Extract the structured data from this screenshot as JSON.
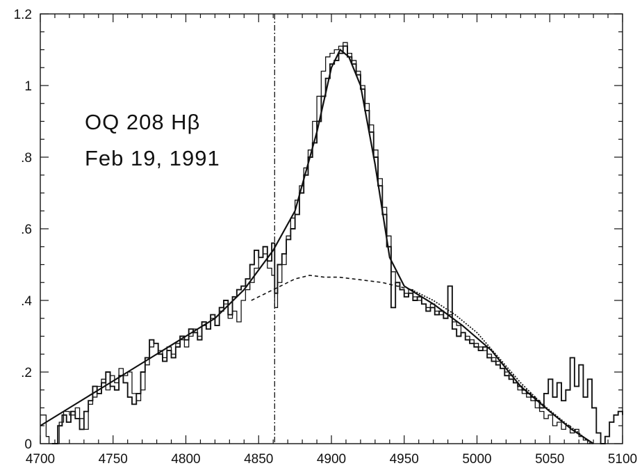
{
  "chart_data": {
    "type": "line",
    "title": "",
    "xlabel": "",
    "ylabel": "",
    "xlim": [
      4700,
      5100
    ],
    "ylim": [
      0,
      1.2
    ],
    "grid": false,
    "x_ticks": [
      4700,
      4750,
      4800,
      4850,
      4900,
      4950,
      5000,
      5050,
      5100
    ],
    "x_tick_labels": [
      "4700",
      "4750",
      "4800",
      "4850",
      "4900",
      "4950",
      "5000",
      "5050",
      "5100"
    ],
    "y_ticks": [
      0,
      0.2,
      0.4,
      0.6,
      0.8,
      1.0,
      1.2
    ],
    "y_tick_labels": [
      "0",
      ".2",
      ".4",
      ".6",
      ".8",
      "1",
      "1.2"
    ],
    "annotations": {
      "line1": "OQ 208 Hβ",
      "line2": "Feb 19, 1991"
    },
    "vertical_marker": {
      "x": 4861,
      "style": "dash-dot"
    },
    "series": [
      {
        "style": "step-thin",
        "points": [
          [
            4700,
            0.08
          ],
          [
            4704,
            0.02
          ],
          [
            4706,
            0.0
          ],
          [
            4710,
            0.0
          ],
          [
            4713,
            0.06
          ],
          [
            4716,
            0.09
          ],
          [
            4720,
            0.08
          ],
          [
            4724,
            0.1
          ],
          [
            4727,
            0.07
          ],
          [
            4730,
            0.04
          ],
          [
            4733,
            0.11
          ],
          [
            4736,
            0.13
          ],
          [
            4739,
            0.16
          ],
          [
            4742,
            0.18
          ],
          [
            4745,
            0.15
          ],
          [
            4748,
            0.19
          ],
          [
            4751,
            0.17
          ],
          [
            4754,
            0.21
          ],
          [
            4757,
            0.19
          ],
          [
            4760,
            0.2
          ],
          [
            4763,
            0.14
          ],
          [
            4766,
            0.12
          ],
          [
            4769,
            0.15
          ],
          [
            4772,
            0.22
          ],
          [
            4775,
            0.27
          ],
          [
            4778,
            0.28
          ],
          [
            4781,
            0.26
          ],
          [
            4784,
            0.24
          ],
          [
            4787,
            0.27
          ],
          [
            4790,
            0.25
          ],
          [
            4793,
            0.28
          ],
          [
            4796,
            0.29
          ],
          [
            4799,
            0.27
          ],
          [
            4802,
            0.3
          ],
          [
            4805,
            0.32
          ],
          [
            4808,
            0.3
          ],
          [
            4811,
            0.33
          ],
          [
            4814,
            0.32
          ],
          [
            4817,
            0.35
          ],
          [
            4820,
            0.33
          ],
          [
            4823,
            0.37
          ],
          [
            4826,
            0.39
          ],
          [
            4829,
            0.35
          ],
          [
            4832,
            0.37
          ],
          [
            4835,
            0.34
          ],
          [
            4838,
            0.4
          ],
          [
            4841,
            0.43
          ],
          [
            4844,
            0.45
          ],
          [
            4847,
            0.49
          ],
          [
            4850,
            0.52
          ],
          [
            4853,
            0.53
          ],
          [
            4856,
            0.49
          ],
          [
            4859,
            0.47
          ],
          [
            4861,
            0.38
          ],
          [
            4863,
            0.45
          ],
          [
            4866,
            0.5
          ],
          [
            4869,
            0.58
          ],
          [
            4872,
            0.63
          ],
          [
            4875,
            0.68
          ],
          [
            4878,
            0.72
          ],
          [
            4881,
            0.77
          ],
          [
            4884,
            0.82
          ],
          [
            4887,
            0.9
          ],
          [
            4890,
            0.97
          ],
          [
            4893,
            1.04
          ],
          [
            4896,
            1.08
          ],
          [
            4899,
            1.09
          ],
          [
            4902,
            1.1
          ],
          [
            4905,
            1.11
          ],
          [
            4908,
            1.12
          ],
          [
            4911,
            1.09
          ],
          [
            4914,
            1.07
          ],
          [
            4917,
            1.04
          ],
          [
            4920,
            1.0
          ],
          [
            4923,
            0.95
          ],
          [
            4926,
            0.89
          ],
          [
            4929,
            0.82
          ],
          [
            4932,
            0.74
          ],
          [
            4935,
            0.66
          ],
          [
            4938,
            0.58
          ],
          [
            4941,
            0.48
          ],
          [
            4944,
            0.44
          ],
          [
            4947,
            0.43
          ],
          [
            4950,
            0.42
          ],
          [
            4953,
            0.43
          ],
          [
            4956,
            0.41
          ],
          [
            4959,
            0.4
          ],
          [
            4962,
            0.39
          ],
          [
            4965,
            0.38
          ],
          [
            4968,
            0.39
          ],
          [
            4971,
            0.37
          ],
          [
            4974,
            0.36
          ],
          [
            4977,
            0.35
          ],
          [
            4980,
            0.36
          ],
          [
            4983,
            0.34
          ],
          [
            4986,
            0.33
          ],
          [
            4989,
            0.31
          ],
          [
            4992,
            0.3
          ],
          [
            4995,
            0.29
          ],
          [
            4998,
            0.28
          ],
          [
            5001,
            0.27
          ],
          [
            5004,
            0.26
          ],
          [
            5007,
            0.25
          ],
          [
            5010,
            0.24
          ],
          [
            5013,
            0.23
          ],
          [
            5016,
            0.21
          ],
          [
            5019,
            0.2
          ],
          [
            5022,
            0.19
          ],
          [
            5025,
            0.17
          ],
          [
            5028,
            0.15
          ],
          [
            5031,
            0.14
          ],
          [
            5034,
            0.13
          ],
          [
            5037,
            0.12
          ],
          [
            5040,
            0.1
          ],
          [
            5043,
            0.09
          ],
          [
            5046,
            0.07
          ],
          [
            5049,
            0.08
          ],
          [
            5052,
            0.05
          ],
          [
            5055,
            0.06
          ],
          [
            5058,
            0.04
          ],
          [
            5061,
            0.05
          ],
          [
            5064,
            0.03
          ],
          [
            5067,
            0.04
          ],
          [
            5070,
            0.02
          ],
          [
            5073,
            0.01
          ],
          [
            5076,
            0.0
          ],
          [
            5080,
            0.0
          ]
        ]
      },
      {
        "style": "step-bold",
        "points": [
          [
            4708,
            0.0
          ],
          [
            4712,
            0.05
          ],
          [
            4715,
            0.08
          ],
          [
            4718,
            0.06
          ],
          [
            4721,
            0.09
          ],
          [
            4724,
            0.07
          ],
          [
            4727,
            0.04
          ],
          [
            4730,
            0.09
          ],
          [
            4733,
            0.12
          ],
          [
            4736,
            0.16
          ],
          [
            4739,
            0.14
          ],
          [
            4742,
            0.17
          ],
          [
            4745,
            0.2
          ],
          [
            4748,
            0.16
          ],
          [
            4751,
            0.15
          ],
          [
            4754,
            0.19
          ],
          [
            4757,
            0.17
          ],
          [
            4760,
            0.13
          ],
          [
            4763,
            0.11
          ],
          [
            4766,
            0.14
          ],
          [
            4769,
            0.2
          ],
          [
            4772,
            0.24
          ],
          [
            4775,
            0.29
          ],
          [
            4778,
            0.28
          ],
          [
            4781,
            0.25
          ],
          [
            4784,
            0.23
          ],
          [
            4787,
            0.26
          ],
          [
            4790,
            0.24
          ],
          [
            4793,
            0.27
          ],
          [
            4796,
            0.3
          ],
          [
            4799,
            0.29
          ],
          [
            4802,
            0.32
          ],
          [
            4805,
            0.31
          ],
          [
            4808,
            0.29
          ],
          [
            4811,
            0.34
          ],
          [
            4814,
            0.32
          ],
          [
            4817,
            0.36
          ],
          [
            4820,
            0.33
          ],
          [
            4823,
            0.38
          ],
          [
            4826,
            0.4
          ],
          [
            4829,
            0.36
          ],
          [
            4832,
            0.41
          ],
          [
            4835,
            0.43
          ],
          [
            4838,
            0.44
          ],
          [
            4841,
            0.46
          ],
          [
            4844,
            0.5
          ],
          [
            4847,
            0.54
          ],
          [
            4850,
            0.52
          ],
          [
            4853,
            0.55
          ],
          [
            4856,
            0.51
          ],
          [
            4859,
            0.56
          ],
          [
            4861,
            0.42
          ],
          [
            4863,
            0.5
          ],
          [
            4866,
            0.53
          ],
          [
            4869,
            0.57
          ],
          [
            4872,
            0.6
          ],
          [
            4875,
            0.64
          ],
          [
            4878,
            0.7
          ],
          [
            4881,
            0.75
          ],
          [
            4884,
            0.8
          ],
          [
            4887,
            0.84
          ],
          [
            4890,
            0.9
          ],
          [
            4893,
            0.97
          ],
          [
            4896,
            1.02
          ],
          [
            4899,
            1.06
          ],
          [
            4902,
            1.07
          ],
          [
            4905,
            1.09
          ],
          [
            4908,
            1.11
          ],
          [
            4911,
            1.08
          ],
          [
            4914,
            1.06
          ],
          [
            4917,
            1.03
          ],
          [
            4920,
            0.99
          ],
          [
            4923,
            0.93
          ],
          [
            4926,
            0.87
          ],
          [
            4929,
            0.8
          ],
          [
            4932,
            0.72
          ],
          [
            4935,
            0.64
          ],
          [
            4938,
            0.55
          ],
          [
            4941,
            0.38
          ],
          [
            4944,
            0.45
          ],
          [
            4947,
            0.43
          ],
          [
            4950,
            0.41
          ],
          [
            4953,
            0.42
          ],
          [
            4956,
            0.4
          ],
          [
            4959,
            0.41
          ],
          [
            4962,
            0.39
          ],
          [
            4965,
            0.37
          ],
          [
            4968,
            0.38
          ],
          [
            4971,
            0.36
          ],
          [
            4974,
            0.37
          ],
          [
            4977,
            0.35
          ],
          [
            4980,
            0.44
          ],
          [
            4983,
            0.32
          ],
          [
            4986,
            0.3
          ],
          [
            4989,
            0.31
          ],
          [
            4992,
            0.29
          ],
          [
            4995,
            0.28
          ],
          [
            4998,
            0.27
          ],
          [
            5001,
            0.26
          ],
          [
            5004,
            0.27
          ],
          [
            5007,
            0.24
          ],
          [
            5010,
            0.23
          ],
          [
            5013,
            0.22
          ],
          [
            5016,
            0.21
          ],
          [
            5019,
            0.19
          ],
          [
            5022,
            0.18
          ],
          [
            5025,
            0.17
          ],
          [
            5028,
            0.16
          ],
          [
            5031,
            0.15
          ],
          [
            5034,
            0.14
          ],
          [
            5037,
            0.13
          ],
          [
            5040,
            0.12
          ],
          [
            5043,
            0.1
          ],
          [
            5046,
            0.14
          ],
          [
            5049,
            0.18
          ],
          [
            5052,
            0.13
          ],
          [
            5055,
            0.17
          ],
          [
            5058,
            0.12
          ],
          [
            5061,
            0.15
          ],
          [
            5064,
            0.24
          ],
          [
            5067,
            0.16
          ],
          [
            5070,
            0.22
          ],
          [
            5073,
            0.13
          ],
          [
            5076,
            0.18
          ],
          [
            5079,
            0.1
          ],
          [
            5082,
            0.03
          ],
          [
            5085,
            0.0
          ],
          [
            5088,
            0.02
          ],
          [
            5091,
            0.06
          ],
          [
            5094,
            0.08
          ],
          [
            5097,
            0.09
          ],
          [
            5100,
            0.08
          ]
        ]
      },
      {
        "style": "smooth-fit",
        "points": [
          [
            4700,
            0.05
          ],
          [
            4720,
            0.1
          ],
          [
            4740,
            0.15
          ],
          [
            4760,
            0.2
          ],
          [
            4780,
            0.25
          ],
          [
            4800,
            0.3
          ],
          [
            4820,
            0.35
          ],
          [
            4840,
            0.43
          ],
          [
            4860,
            0.54
          ],
          [
            4875,
            0.65
          ],
          [
            4890,
            0.87
          ],
          [
            4900,
            1.05
          ],
          [
            4906,
            1.1
          ],
          [
            4912,
            1.08
          ],
          [
            4920,
            1.0
          ],
          [
            4930,
            0.78
          ],
          [
            4940,
            0.52
          ],
          [
            4950,
            0.44
          ],
          [
            4970,
            0.39
          ],
          [
            4990,
            0.33
          ],
          [
            5010,
            0.26
          ],
          [
            5030,
            0.16
          ],
          [
            5050,
            0.09
          ],
          [
            5065,
            0.04
          ],
          [
            5080,
            0.0
          ]
        ]
      },
      {
        "style": "dashed",
        "points": [
          [
            4845,
            0.4
          ],
          [
            4855,
            0.42
          ],
          [
            4865,
            0.44
          ],
          [
            4875,
            0.46
          ],
          [
            4885,
            0.47
          ],
          [
            4895,
            0.465
          ],
          [
            4905,
            0.465
          ],
          [
            4915,
            0.46
          ],
          [
            4925,
            0.455
          ],
          [
            4935,
            0.45
          ],
          [
            4945,
            0.44
          ],
          [
            4955,
            0.43
          ]
        ]
      },
      {
        "style": "dotted",
        "points": [
          [
            4955,
            0.43
          ],
          [
            4970,
            0.4
          ],
          [
            4985,
            0.36
          ],
          [
            5000,
            0.31
          ],
          [
            5015,
            0.24
          ],
          [
            5030,
            0.17
          ],
          [
            5045,
            0.11
          ],
          [
            5060,
            0.06
          ],
          [
            5070,
            0.03
          ],
          [
            5078,
            0.0
          ]
        ]
      }
    ]
  }
}
